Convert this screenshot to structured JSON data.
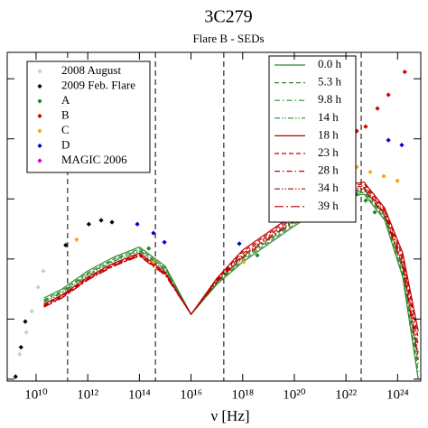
{
  "chart_data": {
    "type": "scatter",
    "title": "3C279",
    "subtitle": "Flare B - SEDs",
    "x_label": "ν [Hz]",
    "x_log": true,
    "y_log": true,
    "xlim": [
      760000000.0,
      7.9e+24
    ],
    "ylim": [
      9.3e-15,
      2.75e-09
    ],
    "xticks": [
      {
        "value": 10000000000.0,
        "label": "10¹⁰"
      },
      {
        "value": 1000000000000.0,
        "label": "10¹²"
      },
      {
        "value": 100000000000000.0,
        "label": "10¹⁴"
      },
      {
        "value": 1e+16,
        "label": "10¹⁶"
      },
      {
        "value": 1e+18,
        "label": "10¹⁸"
      },
      {
        "value": 1e+20,
        "label": "10²⁰"
      },
      {
        "value": 1e+22,
        "label": "10²²"
      },
      {
        "value": 1e+24,
        "label": "10²⁴"
      }
    ],
    "yticks": [
      1e-14,
      1e-13,
      1e-12,
      1e-11,
      1e-10,
      1e-09
    ],
    "vlines": [
      166000000000.0,
      417000000000000.0,
      1.86e+17,
      3.89e+22
    ],
    "series": [
      {
        "name": "2008 August",
        "color": "#cccccc",
        "x": [
          2300000000.0,
          4200000000.0,
          6800000000.0,
          12000000000.0,
          19000000000.0
        ],
        "values": [
          2.6e-14,
          6e-14,
          1.35e-13,
          3.4e-13,
          6.3e-13
        ]
      },
      {
        "name": "2009 Feb. Flare",
        "color": "#000000",
        "x": [
          1600000000.0,
          2600000000.0,
          3800000000.0,
          140000000000.0,
          1100000000000.0,
          3300000000000.0,
          8700000000000.0
        ],
        "values": [
          1.1e-14,
          3.4e-14,
          9.1e-14,
          1.7e-12,
          3.8e-12,
          4.4e-12,
          4.1e-12
        ]
      },
      {
        "name": "A",
        "color": "#1a8a1a",
        "x": [
          230000000000000.0,
          3.7e+18,
          2.6e+22,
          5.8e+22,
          1.3e+23
        ],
        "values": [
          1.5e-12,
          1.15e-12,
          1.2e-11,
          9.4e-12,
          6e-12
        ]
      },
      {
        "name": "B",
        "color": "#d00000",
        "x": [
          2.6e+22,
          5.8e+22,
          1.66e+23,
          4.4e+23,
          1.9e+24
        ],
        "values": [
          1.35e-10,
          1.6e-10,
          3.2e-10,
          5.4e-10,
          1.3e-09
        ]
      },
      {
        "name": "C",
        "color": "#ffa500",
        "x": [
          370000000000.0,
          350000000000000.0,
          1.1e+18,
          2.6e+22,
          8.7e+22,
          2.9e+23,
          9.8e+23
        ],
        "values": [
          2.1e-12,
          8.9e-13,
          8.9e-13,
          3.4e-11,
          2.8e-11,
          2.4e-11,
          2e-11
        ]
      },
      {
        "name": "D",
        "color": "#0000cc",
        "x": [
          83000000000000.0,
          350000000000000.0,
          930000000000000.0,
          7.4e+17,
          4.4e+23,
          1.45e+24
        ],
        "values": [
          3.8e-12,
          2.7e-12,
          1.9e-12,
          1.8e-12,
          9.5e-11,
          7.9e-11
        ]
      },
      {
        "name": "MAGIC 2006",
        "color": "#cc00cc",
        "x": [],
        "values": []
      }
    ],
    "model_x": [
      20000000000.0,
      100000000000.0,
      1000000000000.0,
      10000000000000.0,
      100000000000000.0,
      1000000000000000.0,
      1e+16,
      1e+17,
      1e+18,
      1e+20,
      1e+21,
      1e+22,
      5.01e+22,
      3.16e+23,
      1.58e+24,
      6.31e+24
    ],
    "models": [
      {
        "name": "0.0 h",
        "color": "#2e8b2e",
        "dash": "solid",
        "values": [
          2.24e-13,
          3.16e-13,
          6.31e-13,
          1.07e-12,
          1.58e-12,
          7.59e-13,
          1.2e-13,
          3.8e-13,
          8.91e-13,
          3.55e-12,
          6.61e-12,
          1.07e-11,
          1.2e-11,
          4.47e-12,
          5.01e-13,
          1e-14
        ]
      },
      {
        "name": "5.3 h",
        "color": "#2e8b2e",
        "dash": "dashed",
        "values": [
          2.09e-13,
          2.95e-13,
          5.89e-13,
          1e-12,
          1.48e-12,
          7.08e-13,
          1.2e-13,
          3.94e-13,
          9.55e-13,
          3.8e-12,
          7.08e-12,
          1.15e-11,
          1.29e-11,
          4.79e-12,
          5.75e-13,
          1.32e-14
        ]
      },
      {
        "name": "9.8 h",
        "color": "#2e8b2e",
        "dash": "dashdot",
        "values": [
          2e-13,
          2.82e-13,
          5.62e-13,
          9.55e-13,
          1.41e-12,
          6.76e-13,
          1.2e-13,
          4.07e-13,
          1.02e-12,
          4.07e-12,
          7.59e-12,
          1.23e-11,
          1.38e-11,
          5.13e-12,
          6.61e-13,
          1.74e-14
        ]
      },
      {
        "name": "14 h",
        "color": "#2e8b2e",
        "dash": "dashdotdot",
        "values": [
          1.91e-13,
          2.69e-13,
          5.37e-13,
          9.12e-13,
          1.35e-12,
          6.46e-13,
          1.2e-13,
          4.22e-13,
          1.1e-12,
          4.37e-12,
          8.13e-12,
          1.32e-11,
          1.48e-11,
          5.5e-12,
          7.59e-13,
          2.29e-14
        ]
      },
      {
        "name": "18 h",
        "color": "#c00000",
        "dash": "solid",
        "values": [
          1.78e-13,
          2.51e-13,
          5.01e-13,
          8.51e-13,
          1.26e-12,
          6.03e-13,
          1.2e-13,
          4.79e-13,
          1.41e-12,
          5.62e-12,
          1.05e-11,
          1.7e-11,
          1.91e-11,
          7.08e-12,
          1.26e-12,
          6.31e-14
        ]
      },
      {
        "name": "23 h",
        "color": "#c00000",
        "dash": "dashed",
        "values": [
          1.7e-13,
          2.4e-13,
          4.79e-13,
          8.13e-13,
          1.2e-12,
          5.75e-13,
          1.2e-13,
          4.62e-13,
          1.32e-12,
          5.25e-12,
          9.77e-12,
          1.58e-11,
          1.78e-11,
          6.61e-12,
          1.1e-12,
          4.79e-14
        ]
      },
      {
        "name": "28 h",
        "color": "#c00000",
        "dash": "dashdot",
        "values": [
          1.66e-13,
          2.34e-13,
          4.68e-13,
          7.94e-13,
          1.17e-12,
          5.62e-13,
          1.2e-13,
          4.47e-13,
          1.23e-12,
          4.9e-12,
          9.12e-12,
          1.48e-11,
          1.66e-11,
          6.17e-12,
          9.55e-13,
          3.63e-14
        ]
      },
      {
        "name": "34 h",
        "color": "#c00000",
        "dash": "dashdotdot",
        "values": [
          1.62e-13,
          2.29e-13,
          4.57e-13,
          7.76e-13,
          1.15e-12,
          5.5e-13,
          1.2e-13,
          4.32e-13,
          1.15e-12,
          4.57e-12,
          8.51e-12,
          1.38e-11,
          1.55e-11,
          5.75e-12,
          8.32e-13,
          2.75e-14
        ]
      },
      {
        "name": "39 h",
        "color": "#c00000",
        "dash": "longdashdot",
        "values": [
          1.58e-13,
          2.24e-13,
          4.47e-13,
          7.59e-13,
          1.12e-12,
          5.37e-13,
          1.2e-13,
          4.17e-13,
          1.07e-12,
          4.27e-12,
          7.94e-12,
          1.29e-11,
          1.45e-11,
          5.37e-12,
          7.24e-13,
          2.09e-14
        ]
      }
    ]
  }
}
